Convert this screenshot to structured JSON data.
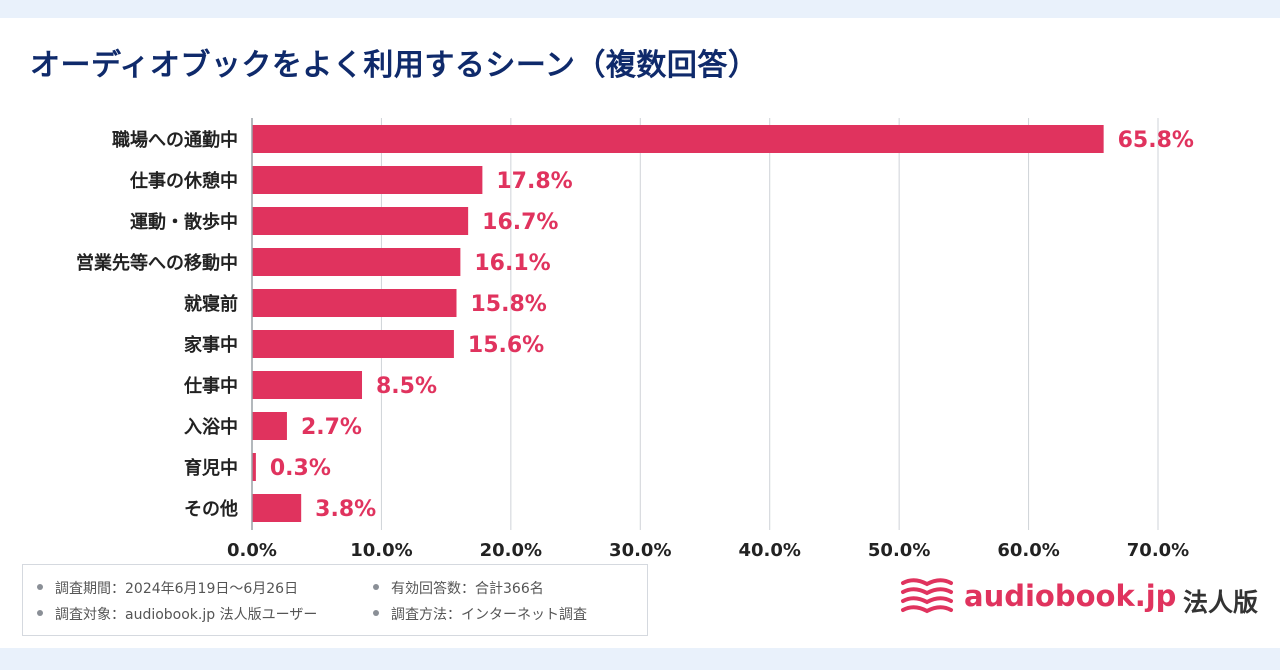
{
  "title": "オーディオブックをよく利用するシーン（複数回答）",
  "chart_data": {
    "type": "bar",
    "orientation": "horizontal",
    "title": "オーディオブックをよく利用するシーン（複数回答）",
    "categories": [
      "職場への通勤中",
      "仕事の休憩中",
      "運動・散歩中",
      "営業先等への移動中",
      "就寝前",
      "家事中",
      "仕事中",
      "入浴中",
      "育児中",
      "その他"
    ],
    "values": [
      65.8,
      17.8,
      16.7,
      16.1,
      15.8,
      15.6,
      8.5,
      2.7,
      0.3,
      3.8
    ],
    "value_labels": [
      "65.8%",
      "17.8%",
      "16.7%",
      "16.1%",
      "15.8%",
      "15.6%",
      "8.5%",
      "2.7%",
      "0.3%",
      "3.8%"
    ],
    "xlim": [
      0,
      70
    ],
    "ticks": [
      0,
      10,
      20,
      30,
      40,
      50,
      60,
      70
    ],
    "tick_labels": [
      "0.0%",
      "10.0%",
      "20.0%",
      "30.0%",
      "40.0%",
      "50.0%",
      "60.0%",
      "70.0%"
    ],
    "xlabel": "",
    "ylabel": "",
    "grid": true,
    "bar_color": "#e0335e",
    "label_color": "#e0335e"
  },
  "notes": {
    "period": "調査期間：2024年6月19日〜6月26日",
    "responses": "有効回答数：合計366名",
    "target": "調査対象：audiobook.jp 法人版ユーザー",
    "method": "調査方法：インターネット調査"
  },
  "logo": {
    "text": "audiobook.jp",
    "suffix": "法人版",
    "color": "#e0335e"
  }
}
